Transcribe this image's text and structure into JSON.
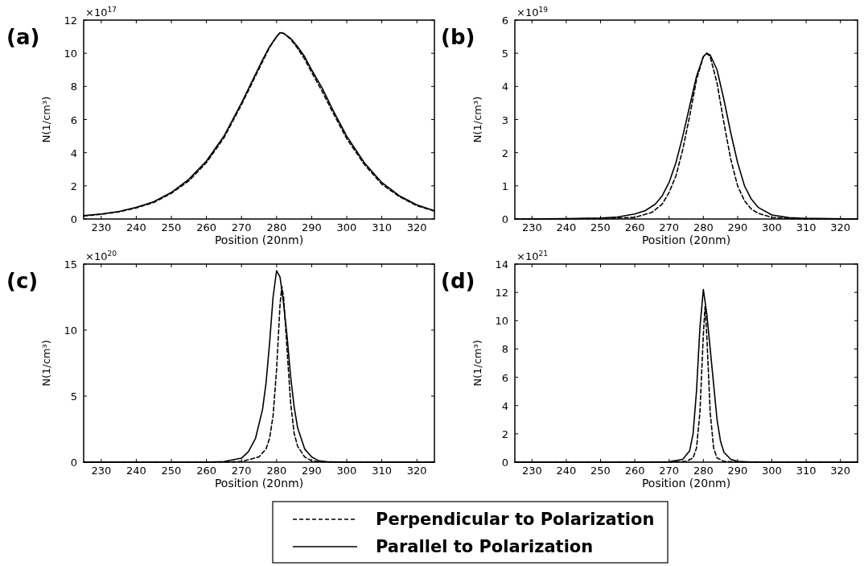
{
  "chart_data": [
    {
      "type": "line",
      "title": "(a)",
      "xlabel": "Position (20nm)",
      "ylabel": "N(1/cm³)",
      "annotations": [
        "×10$^{17}$"
      ],
      "xlim": [
        225,
        325
      ],
      "xticks": [
        230,
        240,
        250,
        260,
        270,
        280,
        290,
        300,
        310,
        320
      ],
      "ylim": [
        0,
        12
      ],
      "yticks": [
        0,
        2,
        4,
        6,
        8,
        10,
        12
      ],
      "legend": "bottom",
      "series": [
        {
          "name": "Perpendicular to Polarization",
          "color": "#000000",
          "line_style": "dashed",
          "x": [
            225,
            230,
            235,
            240,
            245,
            250,
            255,
            260,
            265,
            270,
            273,
            276,
            278,
            280,
            281,
            282,
            284,
            286,
            288,
            290,
            293,
            296,
            300,
            305,
            310,
            315,
            320,
            325
          ],
          "values": [
            0.18,
            0.28,
            0.43,
            0.67,
            1.0,
            1.55,
            2.3,
            3.4,
            4.9,
            6.9,
            8.2,
            9.5,
            10.35,
            11.0,
            11.25,
            11.2,
            10.85,
            10.3,
            9.65,
            8.85,
            7.7,
            6.45,
            4.85,
            3.3,
            2.1,
            1.35,
            0.8,
            0.48
          ]
        },
        {
          "name": "Parallel to Polarization",
          "color": "#000000",
          "line_style": "solid",
          "x": [
            225,
            230,
            235,
            240,
            245,
            250,
            255,
            260,
            265,
            270,
            273,
            276,
            278,
            280,
            281,
            282,
            284,
            286,
            288,
            290,
            293,
            296,
            300,
            305,
            310,
            315,
            320,
            325
          ],
          "values": [
            0.2,
            0.3,
            0.45,
            0.7,
            1.05,
            1.6,
            2.4,
            3.5,
            5.0,
            7.0,
            8.3,
            9.6,
            10.4,
            11.0,
            11.25,
            11.2,
            10.9,
            10.4,
            9.8,
            9.0,
            7.9,
            6.6,
            5.0,
            3.4,
            2.2,
            1.4,
            0.85,
            0.5
          ]
        }
      ]
    },
    {
      "type": "line",
      "title": "(b)",
      "xlabel": "Position (20nm)",
      "ylabel": "N(1/cm³)",
      "annotations": [
        "×10$^{19}$"
      ],
      "xlim": [
        225,
        325
      ],
      "xticks": [
        230,
        240,
        250,
        260,
        270,
        280,
        290,
        300,
        310,
        320
      ],
      "ylim": [
        0,
        6
      ],
      "yticks": [
        0,
        1,
        2,
        3,
        4,
        5,
        6
      ],
      "series": [
        {
          "color": "#000000",
          "line_style": "dashed",
          "x": [
            225,
            250,
            260,
            265,
            268,
            270,
            272,
            274,
            276,
            278,
            280,
            281,
            282,
            284,
            286,
            288,
            290,
            292,
            294,
            296,
            300,
            305,
            310,
            325
          ],
          "values": [
            0,
            0.01,
            0.05,
            0.2,
            0.45,
            0.8,
            1.3,
            2.1,
            3.1,
            4.2,
            4.9,
            5.0,
            4.9,
            4.1,
            2.9,
            1.8,
            1.0,
            0.55,
            0.3,
            0.17,
            0.05,
            0.01,
            0,
            0
          ]
        },
        {
          "color": "#000000",
          "line_style": "solid",
          "x": [
            225,
            240,
            250,
            255,
            260,
            263,
            266,
            268,
            270,
            272,
            274,
            276,
            278,
            280,
            281,
            282,
            284,
            286,
            288,
            290,
            292,
            294,
            296,
            300,
            305,
            310,
            325
          ],
          "values": [
            0,
            0.01,
            0.03,
            0.06,
            0.15,
            0.25,
            0.45,
            0.7,
            1.1,
            1.7,
            2.5,
            3.4,
            4.3,
            4.9,
            5.0,
            4.95,
            4.5,
            3.6,
            2.6,
            1.7,
            1.0,
            0.6,
            0.35,
            0.12,
            0.04,
            0.02,
            0
          ]
        }
      ]
    },
    {
      "type": "line",
      "title": "(c)",
      "xlabel": "Position (20nm)",
      "ylabel": "N(1/cm³)",
      "annotations": [
        "×10$^{20}$"
      ],
      "xlim": [
        225,
        325
      ],
      "xticks": [
        230,
        240,
        250,
        260,
        270,
        280,
        290,
        300,
        310,
        320
      ],
      "ylim": [
        0,
        15
      ],
      "yticks": [
        0,
        5,
        10,
        15
      ],
      "series": [
        {
          "color": "#000000",
          "line_style": "dashed",
          "x": [
            225,
            265,
            270,
            275,
            277,
            278,
            279,
            280,
            281,
            281.5,
            282,
            283,
            284,
            285,
            286,
            288,
            290,
            292,
            300,
            325
          ],
          "values": [
            0,
            0,
            0.05,
            0.4,
            1.0,
            1.8,
            3.5,
            7.0,
            12.0,
            13.3,
            12.5,
            8.5,
            4.5,
            2.2,
            1.2,
            0.4,
            0.1,
            0.02,
            0,
            0
          ]
        },
        {
          "color": "#000000",
          "line_style": "solid",
          "x": [
            225,
            260,
            265,
            270,
            272,
            274,
            276,
            277,
            278,
            279,
            280,
            281,
            282,
            283,
            284,
            285,
            286,
            288,
            290,
            292,
            295,
            300,
            325
          ],
          "values": [
            0,
            0,
            0.05,
            0.3,
            0.8,
            1.8,
            4.0,
            6.0,
            9.0,
            12.5,
            14.5,
            14.0,
            12.0,
            9.5,
            6.5,
            4.2,
            2.6,
            1.0,
            0.4,
            0.1,
            0.02,
            0,
            0
          ]
        }
      ]
    },
    {
      "type": "line",
      "title": "(d)",
      "xlabel": "Position (20nm)",
      "ylabel": "N(1/cm³)",
      "annotations": [
        "×10$^{21}$"
      ],
      "xlim": [
        225,
        325
      ],
      "xticks": [
        230,
        240,
        250,
        260,
        270,
        280,
        290,
        300,
        310,
        320
      ],
      "ylim": [
        0,
        14
      ],
      "yticks": [
        0,
        2,
        4,
        6,
        8,
        10,
        12,
        14
      ],
      "series": [
        {
          "color": "#000000",
          "line_style": "dashed",
          "x": [
            225,
            270,
            275,
            277,
            278,
            279,
            280,
            280.5,
            281,
            282,
            283,
            284,
            286,
            290,
            325
          ],
          "values": [
            0,
            0,
            0.05,
            0.3,
            1.0,
            3.5,
            9.0,
            11.0,
            9.0,
            3.5,
            1.0,
            0.3,
            0.05,
            0,
            0
          ]
        },
        {
          "color": "#000000",
          "line_style": "solid",
          "x": [
            225,
            265,
            270,
            274,
            276,
            277,
            278,
            279,
            280,
            281,
            282,
            283,
            284,
            285,
            286,
            288,
            290,
            295,
            325
          ],
          "values": [
            0,
            0,
            0.02,
            0.2,
            0.8,
            2.0,
            5.0,
            9.5,
            12.2,
            10.5,
            8.0,
            5.5,
            3.0,
            1.5,
            0.7,
            0.2,
            0.05,
            0,
            0
          ]
        }
      ]
    }
  ]
}
